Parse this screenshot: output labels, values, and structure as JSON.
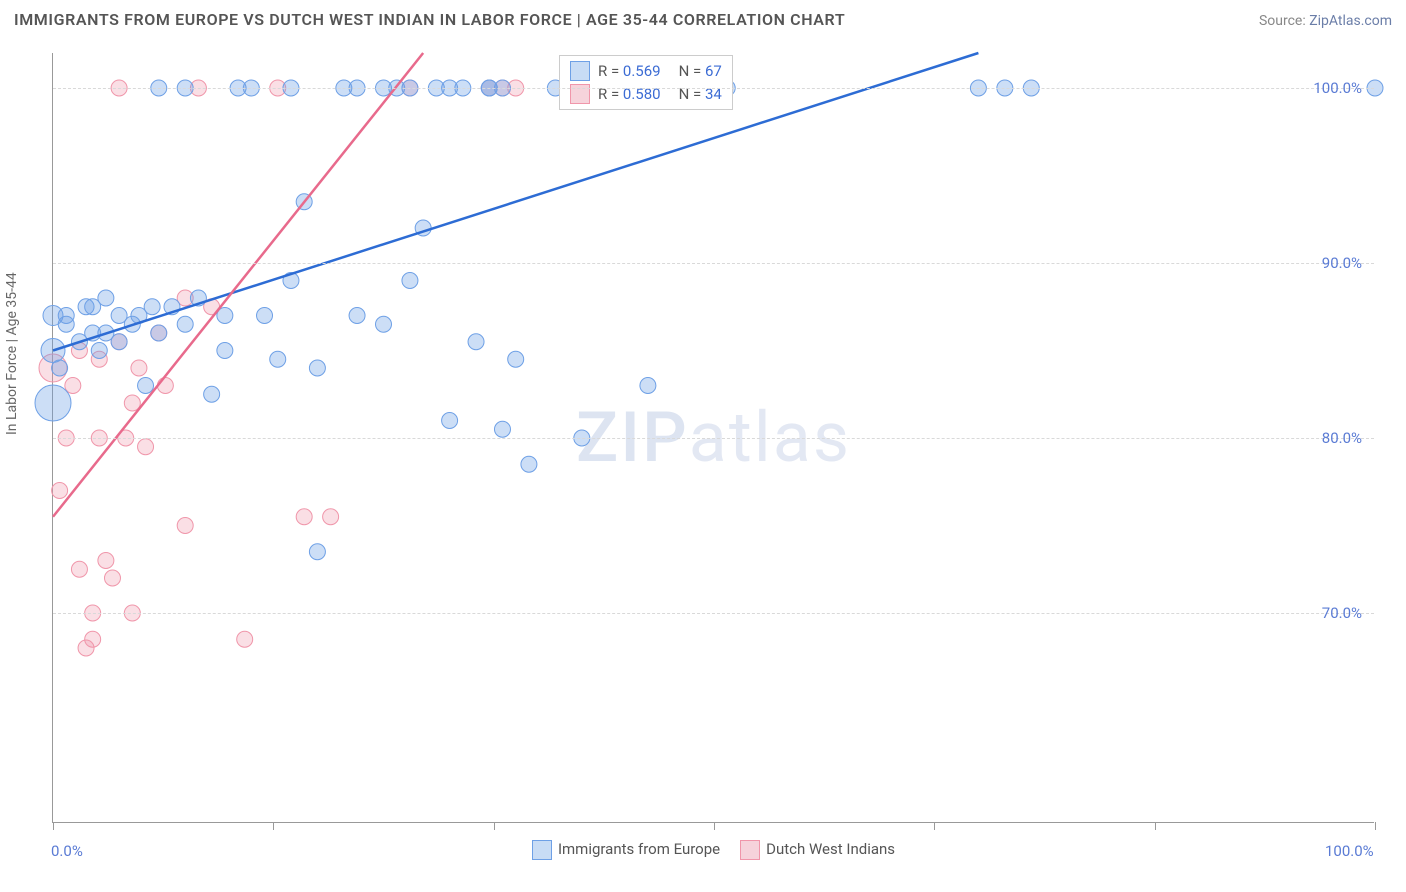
{
  "header": {
    "title": "IMMIGRANTS FROM EUROPE VS DUTCH WEST INDIAN IN LABOR FORCE | AGE 35-44 CORRELATION CHART",
    "source_prefix": "Source: ",
    "source_name": "ZipAtlas.com"
  },
  "chart": {
    "type": "scatter",
    "ylabel": "In Labor Force | Age 35-44",
    "watermark_a": "ZIP",
    "watermark_b": "atlas",
    "xlim": [
      0,
      100
    ],
    "ylim": [
      58,
      102
    ],
    "x_ticks": [
      0,
      16.67,
      33.33,
      50,
      66.67,
      83.33,
      100
    ],
    "x_tick_labels": {
      "0": "0.0%",
      "100": "100.0%"
    },
    "y_gridlines": [
      70,
      80,
      90,
      100
    ],
    "y_tick_labels": {
      "70": "70.0%",
      "80": "80.0%",
      "90": "90.0%",
      "100": "100.0%"
    },
    "grid_color": "#d9d9d9",
    "axis_color": "#999999",
    "background_color": "#ffffff",
    "label_fontsize": 14,
    "tick_fontsize": 15,
    "series": [
      {
        "name": "Immigrants from Europe",
        "color_fill": "rgba(110, 160, 230, 0.35)",
        "color_stroke": "#6ea0e6",
        "swatch_fill": "#c8dcf5",
        "swatch_border": "#6ea0e6",
        "line_color": "#2d6cd4",
        "line_width": 2.5,
        "marker_radius": 8,
        "r_value": "0.569",
        "n_value": "67",
        "trend": {
          "x1": 0,
          "y1": 85,
          "x2": 70,
          "y2": 102
        },
        "points": [
          [
            0,
            82,
            18
          ],
          [
            0,
            85,
            12
          ],
          [
            0,
            87,
            10
          ],
          [
            0.5,
            84,
            8
          ],
          [
            1,
            86.5,
            8
          ],
          [
            1,
            87,
            8
          ],
          [
            2,
            85.5,
            8
          ],
          [
            2.5,
            87.5,
            8
          ],
          [
            3,
            86,
            8
          ],
          [
            3,
            87.5,
            8
          ],
          [
            3.5,
            85,
            8
          ],
          [
            4,
            88,
            8
          ],
          [
            4,
            86,
            8
          ],
          [
            5,
            87,
            8
          ],
          [
            5,
            85.5,
            8
          ],
          [
            6,
            86.5,
            8
          ],
          [
            6.5,
            87,
            8
          ],
          [
            7,
            83,
            8
          ],
          [
            7.5,
            87.5,
            8
          ],
          [
            8,
            100,
            8
          ],
          [
            8,
            86,
            8
          ],
          [
            9,
            87.5,
            8
          ],
          [
            10,
            100,
            8
          ],
          [
            10,
            86.5,
            8
          ],
          [
            11,
            88,
            8
          ],
          [
            12,
            82.5,
            8
          ],
          [
            13,
            87,
            8
          ],
          [
            13,
            85,
            8
          ],
          [
            14,
            100,
            8
          ],
          [
            15,
            100,
            8
          ],
          [
            16,
            87,
            8
          ],
          [
            17,
            84.5,
            8
          ],
          [
            18,
            100,
            8
          ],
          [
            18,
            89,
            8
          ],
          [
            19,
            93.5,
            8
          ],
          [
            20,
            73.5,
            8
          ],
          [
            20,
            84,
            8
          ],
          [
            22,
            100,
            8
          ],
          [
            23,
            100,
            8
          ],
          [
            23,
            87,
            8
          ],
          [
            25,
            100,
            8
          ],
          [
            25,
            86.5,
            8
          ],
          [
            26,
            100,
            8
          ],
          [
            27,
            100,
            8
          ],
          [
            27,
            89,
            8
          ],
          [
            28,
            92,
            8
          ],
          [
            29,
            100,
            8
          ],
          [
            30,
            100,
            8
          ],
          [
            30,
            81,
            8
          ],
          [
            31,
            100,
            8
          ],
          [
            32,
            85.5,
            8
          ],
          [
            33,
            100,
            8
          ],
          [
            33,
            100,
            8
          ],
          [
            34,
            80.5,
            8
          ],
          [
            34,
            100,
            8
          ],
          [
            35,
            84.5,
            8
          ],
          [
            36,
            78.5,
            8
          ],
          [
            38,
            100,
            8
          ],
          [
            40,
            80,
            8
          ],
          [
            42,
            100,
            8
          ],
          [
            45,
            83,
            8
          ],
          [
            46,
            100,
            8
          ],
          [
            51,
            100,
            8
          ],
          [
            70,
            100,
            8
          ],
          [
            72,
            100,
            8
          ],
          [
            74,
            100,
            8
          ],
          [
            100,
            100,
            8
          ]
        ]
      },
      {
        "name": "Dutch West Indians",
        "color_fill": "rgba(240, 150, 170, 0.30)",
        "color_stroke": "#f096aa",
        "swatch_fill": "#f6d3db",
        "swatch_border": "#f096aa",
        "line_color": "#e86a8c",
        "line_width": 2.5,
        "marker_radius": 8,
        "r_value": "0.580",
        "n_value": "34",
        "trend": {
          "x1": 0,
          "y1": 75.5,
          "x2": 28,
          "y2": 102
        },
        "points": [
          [
            0,
            84,
            14
          ],
          [
            0.5,
            77,
            8
          ],
          [
            1,
            80,
            8
          ],
          [
            1.5,
            83,
            8
          ],
          [
            2,
            85,
            8
          ],
          [
            2,
            72.5,
            8
          ],
          [
            2.5,
            68,
            8
          ],
          [
            3,
            70,
            8
          ],
          [
            3,
            68.5,
            8
          ],
          [
            3.5,
            80,
            8
          ],
          [
            3.5,
            84.5,
            8
          ],
          [
            4,
            73,
            8
          ],
          [
            4.5,
            72,
            8
          ],
          [
            5,
            100,
            8
          ],
          [
            5,
            85.5,
            8
          ],
          [
            5.5,
            80,
            8
          ],
          [
            6,
            82,
            8
          ],
          [
            6,
            70,
            8
          ],
          [
            6.5,
            84,
            8
          ],
          [
            7,
            79.5,
            8
          ],
          [
            8,
            86,
            8
          ],
          [
            8.5,
            83,
            8
          ],
          [
            10,
            75,
            8
          ],
          [
            10,
            88,
            8
          ],
          [
            11,
            100,
            8
          ],
          [
            12,
            87.5,
            8
          ],
          [
            14.5,
            68.5,
            8
          ],
          [
            17,
            100,
            8
          ],
          [
            19,
            75.5,
            8
          ],
          [
            21,
            75.5,
            8
          ],
          [
            27,
            100,
            8
          ],
          [
            33,
            100,
            8
          ],
          [
            34,
            100,
            8
          ],
          [
            35,
            100,
            8
          ]
        ]
      }
    ]
  },
  "bottom_legend": {
    "series1_label": "Immigrants from Europe",
    "series2_label": "Dutch West Indians"
  },
  "stats_box": {
    "r_prefix": "R = ",
    "n_prefix": "N = "
  }
}
